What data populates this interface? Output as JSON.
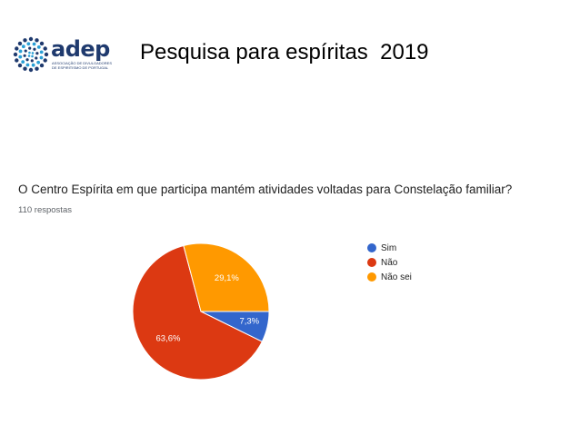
{
  "header": {
    "logo_text": "adep",
    "logo_subtitle": "ASSOCIAÇÃO DE DIVULGADORES DE ESPIRITISMO DE PORTUGAL",
    "title": "Pesquisa para espíritas  2019"
  },
  "chart_data": {
    "type": "pie",
    "title": "O Centro Espírita em que participa mantém atividades voltadas para Constelação familiar?",
    "subtitle": "110 respostas",
    "categories": [
      "Sim",
      "Não",
      "Não sei"
    ],
    "values": [
      7.3,
      63.6,
      29.1
    ],
    "data_labels": [
      "7,3%",
      "63,6%",
      "29,1%"
    ],
    "colors": [
      "#3366cc",
      "#dc3912",
      "#ff9900"
    ],
    "legend_position": "right"
  }
}
